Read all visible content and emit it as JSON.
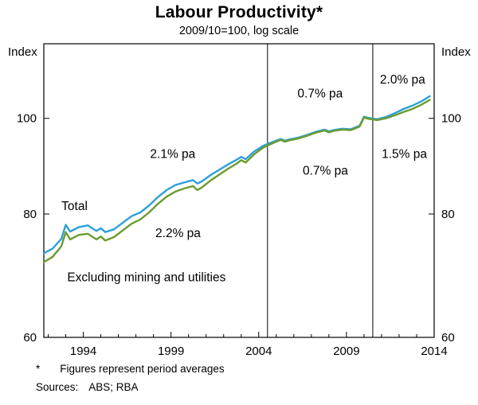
{
  "header": {
    "title": "Labour Productivity*",
    "subtitle": "2009/10=100, log scale"
  },
  "axes": {
    "left_unit": "Index",
    "right_unit": "Index"
  },
  "footnotes": {
    "asterisk": "*",
    "note": "Figures represent period averages",
    "sources_label": "Sources:",
    "sources_value": "ABS; RBA"
  },
  "colors": {
    "total": "#2d9fd8",
    "excluding": "#6c9b2e",
    "axis": "#000000"
  },
  "chart_data": {
    "type": "line",
    "title": "Labour Productivity*",
    "subtitle": "2009/10=100, log scale",
    "unit_label": "Index",
    "log_scale": true,
    "xlim": [
      1991.75,
      2014
    ],
    "ylim": [
      60,
      119
    ],
    "yticks": [
      60,
      80,
      100
    ],
    "xtick_labels": [
      1994,
      1999,
      2004,
      2009,
      2014
    ],
    "dividers": [
      2004.5,
      2010.5
    ],
    "x": [
      1991.75,
      1992.25,
      1992.75,
      1993.0,
      1993.25,
      1993.75,
      1994.25,
      1994.75,
      1995.0,
      1995.25,
      1995.75,
      1996.25,
      1996.75,
      1997.25,
      1997.75,
      1998.25,
      1998.75,
      1999.25,
      1999.75,
      2000.25,
      2000.5,
      2000.75,
      2001.25,
      2001.75,
      2002.25,
      2002.75,
      2003.0,
      2003.25,
      2003.75,
      2004.25,
      2004.75,
      2005.25,
      2005.5,
      2005.75,
      2006.25,
      2006.75,
      2007.25,
      2007.75,
      2008.0,
      2008.25,
      2008.75,
      2009.25,
      2009.75,
      2010.0,
      2010.25,
      2010.75,
      2011.25,
      2011.75,
      2012.25,
      2012.75,
      2013.25,
      2013.75
    ],
    "series": [
      {
        "name": "Total",
        "color_key": "total",
        "values": [
          73.0,
          73.8,
          75.5,
          78.0,
          76.8,
          77.6,
          77.9,
          76.9,
          77.4,
          76.7,
          77.2,
          78.4,
          79.6,
          80.3,
          81.6,
          83.2,
          84.6,
          85.6,
          86.1,
          86.6,
          85.9,
          86.3,
          87.6,
          88.7,
          89.8,
          90.8,
          91.4,
          90.9,
          92.6,
          93.8,
          94.6,
          95.3,
          94.9,
          95.2,
          95.6,
          96.2,
          96.9,
          97.4,
          97.0,
          97.3,
          97.6,
          97.5,
          98.3,
          100.4,
          100.1,
          99.8,
          100.3,
          101.2,
          102.2,
          103.0,
          104.0,
          105.3
        ]
      },
      {
        "name": "Excluding mining and utilities",
        "color_key": "excluding",
        "values": [
          71.5,
          72.4,
          74.2,
          76.7,
          75.4,
          76.2,
          76.4,
          75.4,
          75.9,
          75.2,
          75.8,
          77.0,
          78.2,
          79.0,
          80.3,
          81.9,
          83.3,
          84.3,
          84.9,
          85.4,
          84.6,
          85.1,
          86.5,
          87.7,
          88.9,
          90.0,
          90.7,
          90.2,
          92.0,
          93.4,
          94.3,
          95.1,
          94.7,
          95.0,
          95.4,
          96.0,
          96.7,
          97.2,
          96.8,
          97.1,
          97.4,
          97.3,
          98.1,
          100.2,
          99.9,
          99.6,
          100.0,
          100.7,
          101.5,
          102.2,
          103.2,
          104.4
        ]
      }
    ],
    "annotations": [
      {
        "text": "Total",
        "series": "total",
        "x": 1993.5,
        "y": 81.5
      },
      {
        "text": "2.1% pa",
        "series": "total",
        "x": 1999.1,
        "y": 92.0
      },
      {
        "text": "2.2% pa",
        "series": "excluding",
        "x": 1999.4,
        "y": 76.5
      },
      {
        "text": "Excluding mining and utilities",
        "series": "excluding",
        "x": 1997.6,
        "y": 69.0
      },
      {
        "text": "0.7% pa",
        "series": "total",
        "x": 2007.5,
        "y": 106.0
      },
      {
        "text": "0.7% pa",
        "series": "excluding",
        "x": 2007.8,
        "y": 88.5
      },
      {
        "text": "2.0% pa",
        "series": "total",
        "x": 2012.2,
        "y": 109.5
      },
      {
        "text": "1.5% pa",
        "series": "excluding",
        "x": 2012.3,
        "y": 92.0
      }
    ]
  }
}
